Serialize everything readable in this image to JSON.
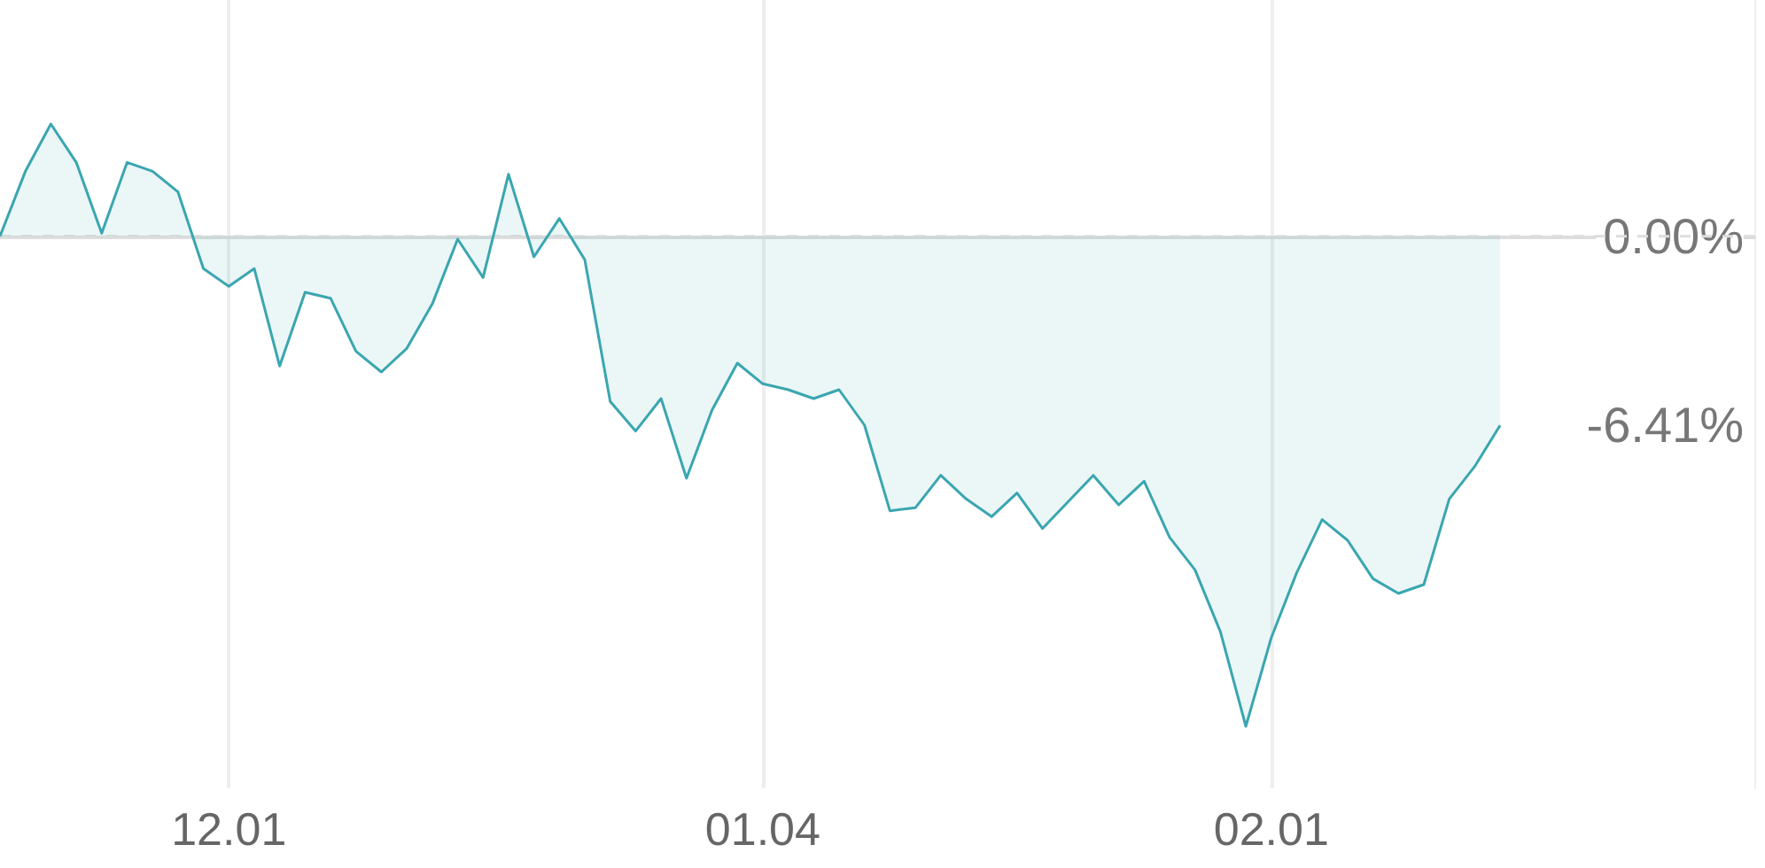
{
  "chart_data": {
    "type": "area",
    "categories": [
      null,
      null,
      null,
      null,
      null,
      null,
      null,
      null,
      null,
      "12.01",
      null,
      null,
      null,
      null,
      null,
      null,
      null,
      null,
      null,
      null,
      null,
      null,
      null,
      null,
      null,
      null,
      null,
      null,
      null,
      null,
      "01.04",
      null,
      null,
      null,
      null,
      null,
      null,
      null,
      null,
      null,
      null,
      null,
      null,
      null,
      null,
      null,
      null,
      null,
      null,
      null,
      "02.01",
      null,
      null,
      null,
      null,
      null,
      null,
      null,
      null,
      null,
      null,
      null,
      null,
      null,
      null,
      null,
      null,
      null,
      null,
      null
    ],
    "series": [
      {
        "color": "#3aa6b0",
        "values": [
          0,
          2.2,
          3.8,
          2.5,
          0.1,
          2.5,
          2.2,
          1.5,
          -1.1,
          -1.7,
          -1.1,
          -4.4,
          -1.9,
          -2.1,
          -3.9,
          -4.6,
          -3.8,
          -2.3,
          -0.1,
          -1.4,
          2.1,
          -0.7,
          0.6,
          -0.8,
          -5.6,
          -6.6,
          -5.5,
          -8.2,
          -5.9,
          -4.3,
          -5.0,
          -5.2,
          -5.5,
          -5.2,
          -6.4,
          -9.3,
          -9.2,
          -8.1,
          -8.9,
          -9.5,
          -8.7,
          -9.9,
          -9.0,
          -8.1,
          -9.1,
          -8.3,
          -10.2,
          -11.3,
          -13.4,
          -16.6,
          -13.6,
          -11.4,
          -9.6,
          -10.3,
          -11.6,
          -12.1,
          -11.8,
          -8.9,
          -7.8,
          -6.41,
          null,
          null,
          null,
          null,
          null,
          null,
          null,
          null,
          null,
          null
        ]
      }
    ],
    "ylim": [
      -18.7,
      8.0
    ],
    "yticks": [
      {
        "value": 0,
        "label": "0.00%"
      },
      {
        "value": -6.41,
        "label": "-6.41%"
      }
    ],
    "grid": "x",
    "marker": "none",
    "ref_lines": [
      {
        "axis": "y",
        "value": 0,
        "color": "#dddddd",
        "line_style": "dashed"
      }
    ]
  }
}
